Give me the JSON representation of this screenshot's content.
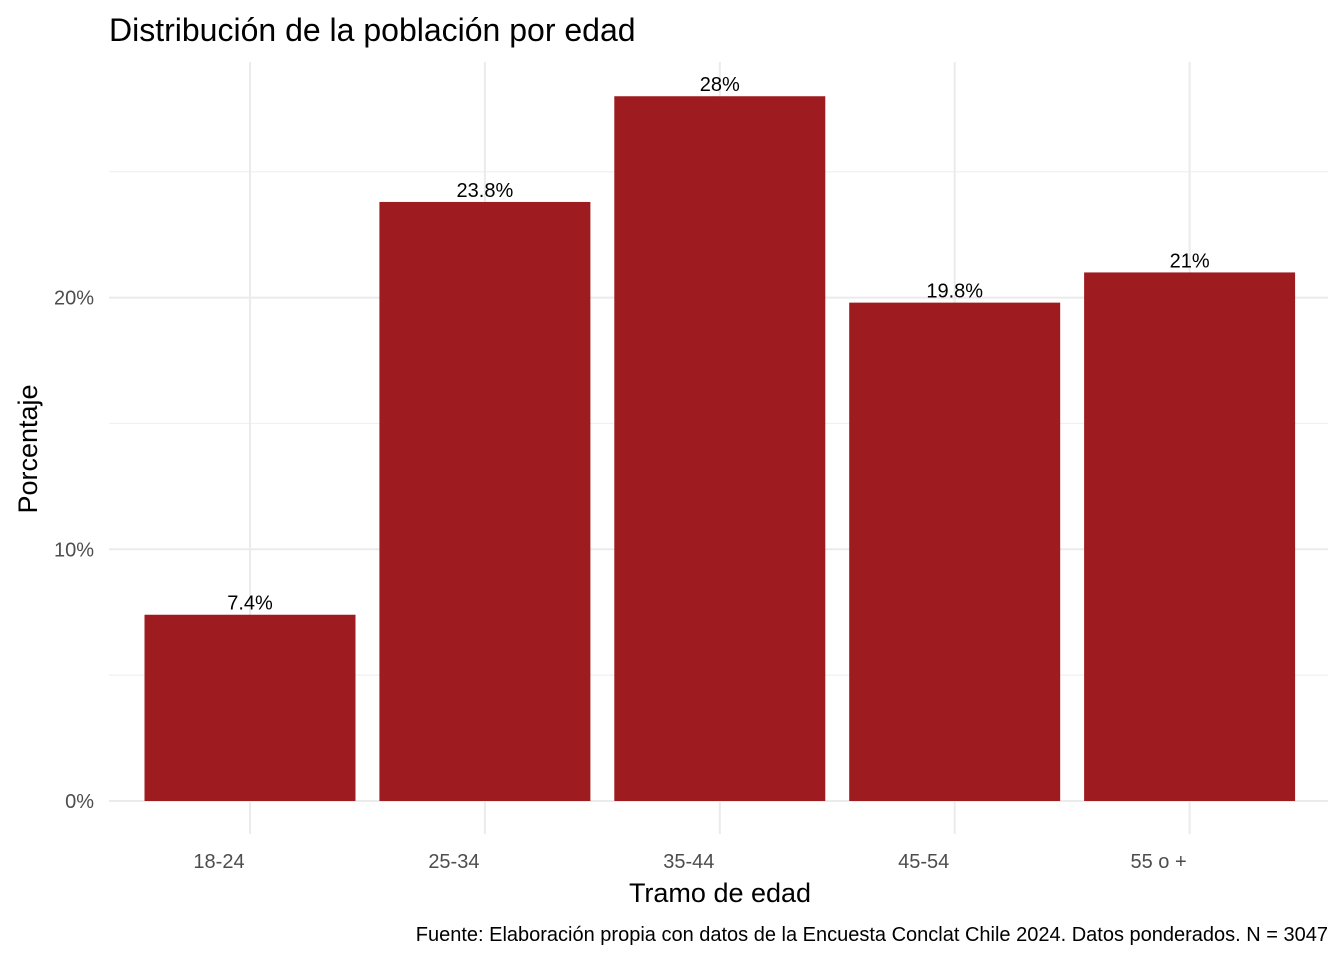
{
  "chart_data": {
    "type": "bar",
    "title": "Distribución de la población por edad",
    "xlabel": "Tramo de edad",
    "ylabel": "Porcentaje",
    "caption": "Fuente: Elaboración propia con datos de la Encuesta Conclat Chile 2024. Datos ponderados. N = 3047",
    "categories": [
      "18-24",
      "25-34",
      "35-44",
      "45-54",
      "55 o +"
    ],
    "values": [
      7.4,
      23.8,
      28,
      19.8,
      21
    ],
    "value_labels": [
      "7.4%",
      "23.8%",
      "28%",
      "19.8%",
      "21%"
    ],
    "y_ticks": [
      0,
      10,
      20
    ],
    "y_tick_labels": [
      "0%",
      "10%",
      "20%"
    ],
    "ylim": [
      0,
      29.4
    ],
    "bar_color": "#9E1C20",
    "grid": true,
    "legend": "none"
  }
}
